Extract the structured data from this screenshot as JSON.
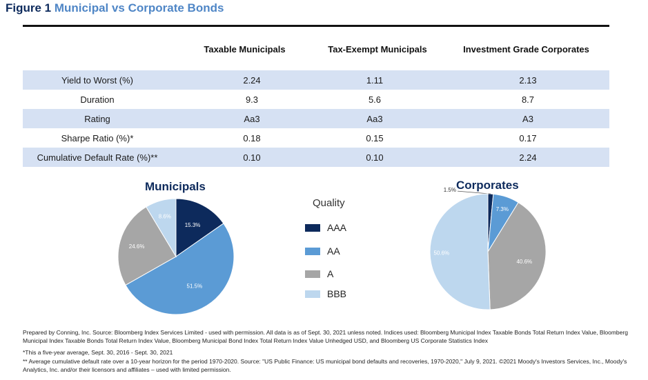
{
  "figure": {
    "number": "Figure 1",
    "title": "Municipal vs Corporate Bonds"
  },
  "table": {
    "columns": [
      "Taxable Municipals",
      "Tax-Exempt Municipals",
      "Investment Grade Corporates"
    ],
    "rows": [
      {
        "label": "Yield to Worst (%)",
        "values": [
          "2.24",
          "1.11",
          "2.13"
        ]
      },
      {
        "label": "Duration",
        "values": [
          "9.3",
          "5.6",
          "8.7"
        ]
      },
      {
        "label": "Rating",
        "values": [
          "Aa3",
          "Aa3",
          "A3"
        ]
      },
      {
        "label": "Sharpe Ratio (%)*",
        "values": [
          "0.18",
          "0.15",
          "0.17"
        ]
      },
      {
        "label": "Cumulative Default Rate (%)**",
        "values": [
          "0.10",
          "0.10",
          "2.24"
        ]
      }
    ]
  },
  "legend": {
    "title": "Quality",
    "items": [
      {
        "label": "AAA",
        "color": "#0d2a5c"
      },
      {
        "label": "AA",
        "color": "#5b9bd5"
      },
      {
        "label": "A",
        "color": "#a6a6a6"
      },
      {
        "label": "BBB",
        "color": "#bdd7ee"
      }
    ]
  },
  "chart_data": [
    {
      "type": "pie",
      "title": "Municipals",
      "categories": [
        "AAA",
        "AA",
        "A",
        "BBB"
      ],
      "values": [
        15.3,
        51.5,
        24.6,
        8.6
      ],
      "labels": [
        "15.3%",
        "51.5%",
        "24.6%",
        "8.6%"
      ],
      "colors": [
        "#0d2a5c",
        "#5b9bd5",
        "#a6a6a6",
        "#bdd7ee"
      ]
    },
    {
      "type": "pie",
      "title": "Corporates",
      "categories": [
        "AAA",
        "AA",
        "A",
        "BBB"
      ],
      "values": [
        1.5,
        7.3,
        40.6,
        50.6
      ],
      "labels": [
        "1.5%",
        "7.3%",
        "40.6%",
        "50.6%"
      ],
      "colors": [
        "#0d2a5c",
        "#5b9bd5",
        "#a6a6a6",
        "#bdd7ee"
      ]
    }
  ],
  "footnotes": {
    "source": "Prepared by Conning, Inc. Source: Bloomberg Index Services Limited - used with permission. All data is as of Sept. 30, 2021 unless noted. Indices used: Bloomberg Municipal Index Taxable Bonds Total Return Index Value, Bloomberg Municipal Index Taxable Bonds Total Return Index Value, Bloomberg Municipal Bond Index Total Return Index Value Unhedged USD, and Bloomberg US Corporate Statistics Index",
    "note1": "*This a five-year average, Sept. 30, 2016 - Sept. 30, 2021",
    "note2": "** Average cumulative default rate over a 10-year horizon for the period 1970-2020. Source: \"US Public Finance: US municipal bond defaults and recoveries, 1970-2020,\" July 9, 2021. ©2021 Moody's Investors Services, Inc., Moody's Analytics, Inc. and/or their licensors and affiliates – used with limited permission."
  }
}
